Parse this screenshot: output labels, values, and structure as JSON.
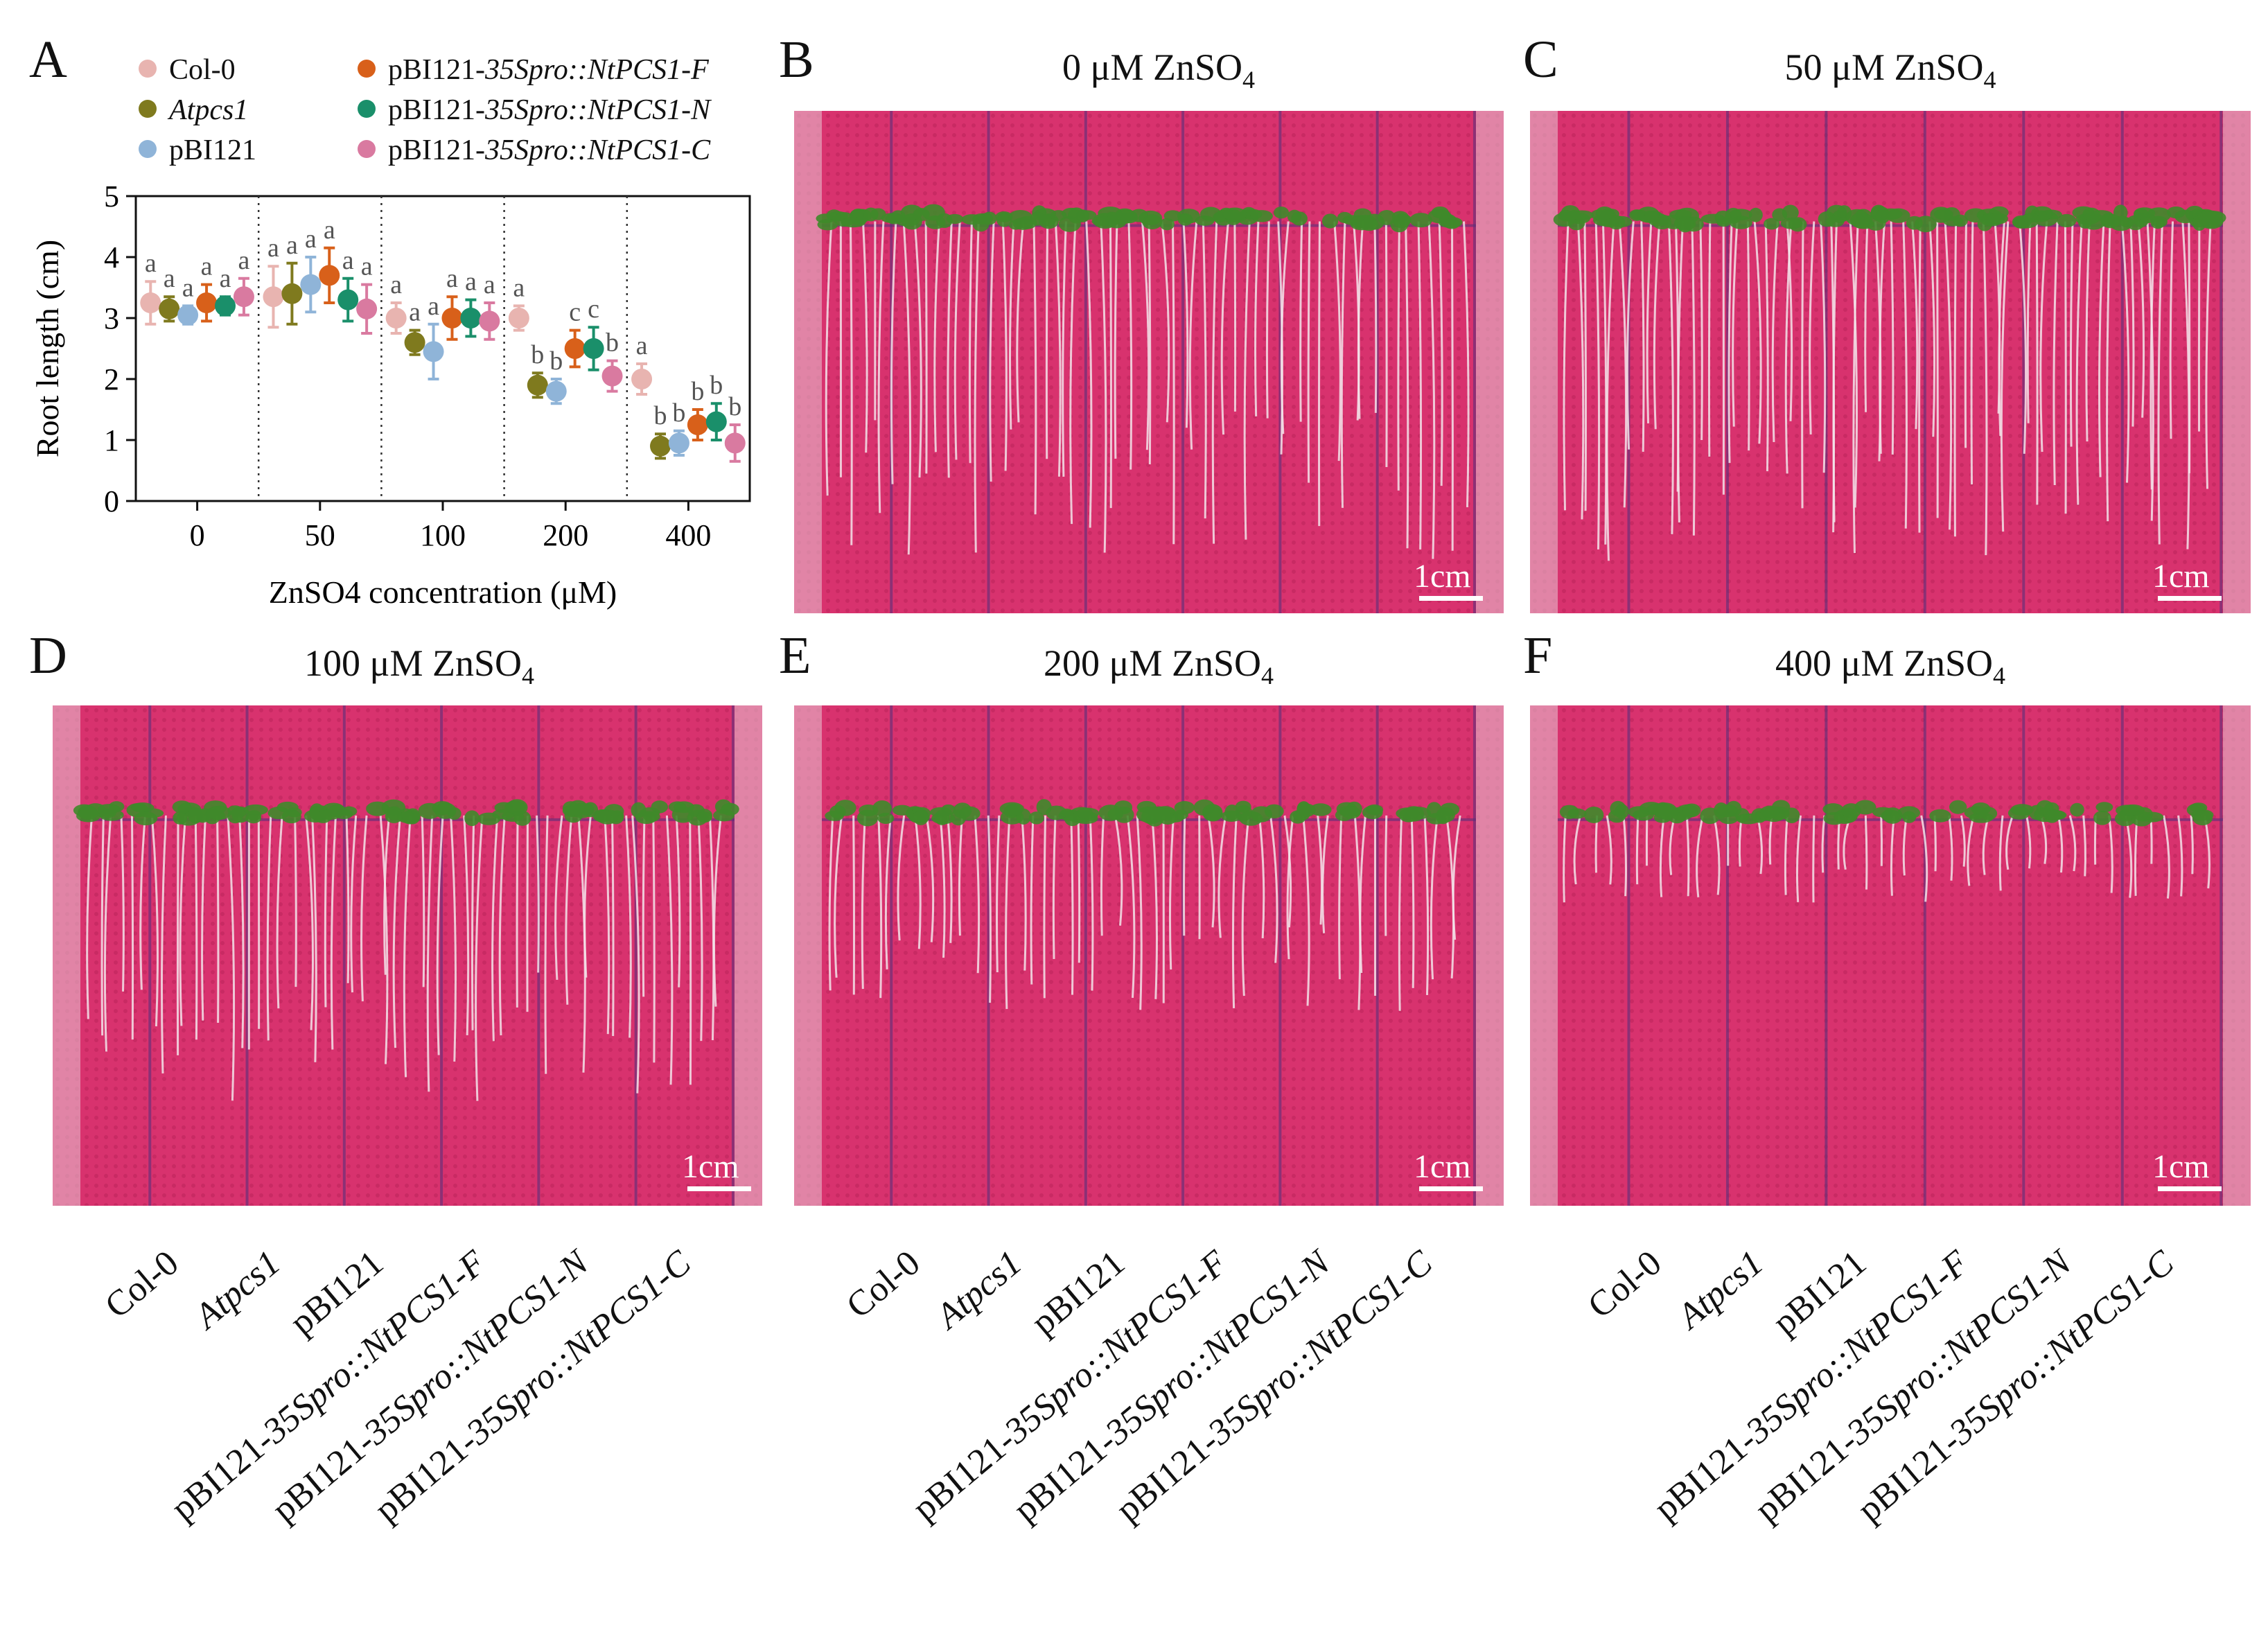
{
  "panels": {
    "A": "A",
    "B": "B",
    "C": "C",
    "D": "D",
    "E": "E",
    "F": "F"
  },
  "plate_titles": {
    "B": {
      "prefix": "0 μM ZnSO",
      "sub": "4"
    },
    "C": {
      "prefix": "50 μM ZnSO",
      "sub": "4"
    },
    "D": {
      "prefix": "100 μM ZnSO",
      "sub": "4"
    },
    "E": {
      "prefix": "200 μM ZnSO",
      "sub": "4"
    },
    "F": {
      "prefix": "400 μM ZnSO",
      "sub": "4"
    }
  },
  "scale_label": "1cm",
  "genotype_labels": [
    {
      "plain": "Col-0",
      "italic": ""
    },
    {
      "plain": "",
      "italic": "Atpcs1"
    },
    {
      "plain": "pBI121",
      "italic": ""
    },
    {
      "plain": "pBI121-",
      "italic": "35Spro::NtPCS1-F"
    },
    {
      "plain": "pBI121-",
      "italic": "35Spro::NtPCS1-N"
    },
    {
      "plain": "pBI121-",
      "italic": "35Spro::NtPCS1-C"
    }
  ],
  "colors": {
    "plate": "#d8326e",
    "plate_dark": "#b82258",
    "grid_line": "#5a2f7a",
    "seedling": "#3f8a2a",
    "root": "#f3e4ea"
  },
  "chart_data": {
    "type": "scatter",
    "xlabel": "ZnSO4 concentration (μM)",
    "ylabel": "Root length (cm)",
    "categories": [
      "0",
      "50",
      "100",
      "200",
      "400"
    ],
    "ylim": [
      0,
      5
    ],
    "yticks": [
      0,
      1,
      2,
      3,
      4,
      5
    ],
    "group_separators": "dotted",
    "legend_placement": "top",
    "series": [
      {
        "name": "Col-0",
        "color": "#e8b4b0",
        "values": [
          3.25,
          3.35,
          3.0,
          3.0,
          2.0
        ],
        "errors": [
          0.35,
          0.5,
          0.25,
          0.2,
          0.25
        ],
        "letters": [
          "a",
          "a",
          "a",
          "a",
          "a"
        ]
      },
      {
        "name": "Atpcs1",
        "italic": true,
        "color": "#7f7a1e",
        "values": [
          3.15,
          3.4,
          2.6,
          1.9,
          0.9
        ],
        "errors": [
          0.2,
          0.5,
          0.2,
          0.2,
          0.2
        ],
        "letters": [
          "a",
          "a",
          "a",
          "b",
          "b"
        ]
      },
      {
        "name": "pBI121",
        "color": "#8fb4d8",
        "values": [
          3.05,
          3.55,
          2.45,
          1.8,
          0.95
        ],
        "errors": [
          0.15,
          0.45,
          0.45,
          0.2,
          0.2
        ],
        "letters": [
          "a",
          "a",
          "a",
          "b",
          "b"
        ]
      },
      {
        "name": "pBI121-35Spro::NtPCS1-F",
        "italic_part": "35Spro::NtPCS1-F",
        "color": "#d8601a",
        "values": [
          3.25,
          3.7,
          3.0,
          2.5,
          1.25
        ],
        "errors": [
          0.3,
          0.45,
          0.35,
          0.3,
          0.25
        ],
        "letters": [
          "a",
          "a",
          "a",
          "c",
          "b"
        ]
      },
      {
        "name": "pBI121-35Spro::NtPCS1-N",
        "italic_part": "35Spro::NtPCS1-N",
        "color": "#1a8f6a",
        "values": [
          3.2,
          3.3,
          3.0,
          2.5,
          1.3
        ],
        "errors": [
          0.15,
          0.35,
          0.3,
          0.35,
          0.3
        ],
        "letters": [
          "a",
          "a",
          "a",
          "c",
          "b"
        ]
      },
      {
        "name": "pBI121-35Spro::NtPCS1-C",
        "italic_part": "35Spro::NtPCS1-C",
        "color": "#d97aa0",
        "values": [
          3.35,
          3.15,
          2.95,
          2.05,
          0.95
        ],
        "errors": [
          0.3,
          0.4,
          0.3,
          0.25,
          0.3
        ],
        "letters": [
          "a",
          "a",
          "a",
          "b",
          "b"
        ]
      }
    ],
    "legend": [
      {
        "plain": "Col-0",
        "italic": ""
      },
      {
        "plain": "pBI121-",
        "italic": "35Spro::NtPCS1-F"
      },
      {
        "plain": "",
        "italic": "Atpcs1"
      },
      {
        "plain": "pBI121-",
        "italic": "35Spro::NtPCS1-N"
      },
      {
        "plain": "pBI121",
        "italic": ""
      },
      {
        "plain": "pBI121-",
        "italic": "35Spro::NtPCS1-C"
      }
    ]
  }
}
